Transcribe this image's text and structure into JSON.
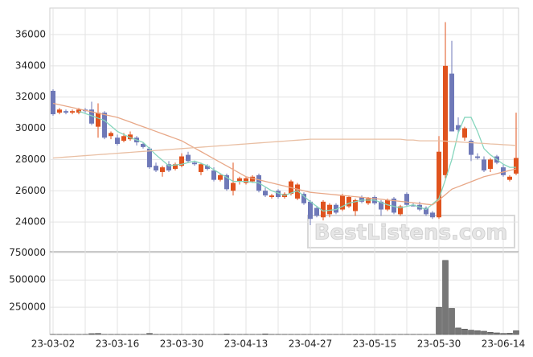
{
  "chart_data": [
    {
      "type": "candlestick",
      "watermark": "BestListens.com",
      "ylim": [
        22100,
        37700
      ],
      "yticks": [
        24000,
        26000,
        28000,
        30000,
        32000,
        34000,
        36000
      ],
      "up_color": "#e0531e",
      "down_color": "#6f79b8",
      "open": [
        32400,
        31000,
        31100,
        31000,
        31000,
        31200,
        31200,
        30100,
        31000,
        29500,
        29400,
        29200,
        29300,
        29400,
        29000,
        28700,
        27600,
        27200,
        27700,
        27400,
        27600,
        28300,
        27800,
        27200,
        27600,
        27300,
        26700,
        27000,
        26000,
        26600,
        26500,
        26600,
        27000,
        26000,
        25600,
        26000,
        25600,
        25800,
        25500,
        25800,
        25300,
        24900,
        24300,
        24500,
        25100,
        24800,
        25000,
        24700,
        25600,
        25200,
        25600,
        25300,
        24800,
        25500,
        24500,
        25800,
        25100,
        25100,
        24900,
        24600,
        24300,
        27000,
        33500,
        30200,
        29400,
        29200,
        28200,
        28000,
        27400,
        28200,
        27500,
        26700,
        27100
      ],
      "high": [
        32500,
        31300,
        31200,
        31200,
        31300,
        31300,
        31700,
        31600,
        31100,
        29800,
        29600,
        29700,
        29800,
        29500,
        29100,
        28800,
        27800,
        27600,
        27900,
        27800,
        28400,
        28500,
        27900,
        27800,
        27700,
        27500,
        27100,
        27100,
        27800,
        26900,
        26900,
        27000,
        27100,
        26200,
        25800,
        26100,
        25900,
        26700,
        26500,
        25900,
        25400,
        25000,
        25400,
        25200,
        25200,
        25800,
        25700,
        25500,
        25700,
        25600,
        25700,
        25400,
        25500,
        25600,
        25100,
        25900,
        25200,
        25300,
        25000,
        24700,
        29500,
        36800,
        35600,
        30700,
        30100,
        29300,
        28400,
        28200,
        28100,
        28300,
        27700,
        27000,
        31000
      ],
      "low": [
        30800,
        30900,
        30900,
        30900,
        30900,
        31000,
        30200,
        29400,
        29300,
        29300,
        28900,
        29100,
        29200,
        28900,
        28700,
        27400,
        27200,
        26900,
        27200,
        27300,
        27500,
        27800,
        27600,
        27000,
        27300,
        26600,
        26600,
        26000,
        25700,
        26400,
        26400,
        26500,
        25900,
        25600,
        25500,
        25500,
        25500,
        25700,
        25400,
        25100,
        23800,
        24300,
        24100,
        24300,
        24500,
        24700,
        24900,
        24400,
        25200,
        25100,
        25100,
        24400,
        24700,
        24500,
        24400,
        25000,
        25000,
        24700,
        24400,
        24200,
        24200,
        26800,
        29800,
        29700,
        29200,
        27900,
        28000,
        27200,
        27200,
        27700,
        26900,
        26600,
        27000
      ],
      "close": [
        30900,
        31200,
        31000,
        31100,
        31200,
        31100,
        30300,
        31000,
        29400,
        29700,
        29000,
        29500,
        29600,
        29100,
        28800,
        27500,
        27300,
        27500,
        27300,
        27700,
        28200,
        27900,
        27700,
        27700,
        27400,
        26700,
        27000,
        26100,
        26500,
        26800,
        26800,
        26900,
        26000,
        25700,
        25700,
        25600,
        25800,
        26600,
        26400,
        25200,
        24200,
        24400,
        25300,
        25100,
        24600,
        25700,
        25600,
        25400,
        25300,
        25500,
        25200,
        24800,
        25400,
        24600,
        25000,
        25100,
        25000,
        24800,
        24500,
        24300,
        28500,
        34000,
        29800,
        29900,
        30000,
        28300,
        28100,
        27300,
        28000,
        27800,
        27000,
        26900,
        28100
      ],
      "lines": [
        {
          "color": "#86d6bd",
          "values": [
            null,
            null,
            null,
            null,
            31100,
            30950,
            30800,
            30650,
            30500,
            30150,
            29800,
            29600,
            29400,
            29250,
            29100,
            28700,
            28300,
            27950,
            27600,
            27650,
            27700,
            27800,
            27900,
            27750,
            27600,
            27350,
            27100,
            26850,
            26600,
            26600,
            26600,
            26550,
            26500,
            26250,
            26000,
            25850,
            25700,
            25850,
            26000,
            25650,
            25300,
            25000,
            24700,
            24750,
            24800,
            25000,
            25200,
            25300,
            25400,
            25400,
            25400,
            25250,
            25100,
            25000,
            24900,
            25000,
            25100,
            24950,
            24800,
            25150,
            25500,
            26700,
            28000,
            29700,
            30700,
            30700,
            29800,
            28700,
            28300,
            28000,
            27700,
            27500,
            27500
          ]
        },
        {
          "color": "#e8a888",
          "values": [
            31600,
            31510,
            31420,
            31330,
            31240,
            31150,
            31060,
            30970,
            30880,
            30790,
            30700,
            30550,
            30400,
            30250,
            30100,
            29950,
            29800,
            29650,
            29500,
            29350,
            29200,
            28970,
            28740,
            28510,
            28280,
            28050,
            27820,
            27590,
            27360,
            27130,
            26900,
            26800,
            26700,
            26600,
            26500,
            26400,
            26300,
            26200,
            26100,
            26000,
            25900,
            25860,
            25820,
            25780,
            25740,
            25700,
            25660,
            25620,
            25580,
            25540,
            25500,
            25460,
            25410,
            25370,
            25320,
            25280,
            25230,
            25190,
            25140,
            25100,
            25400,
            25750,
            26100,
            26260,
            26420,
            26580,
            26740,
            26900,
            27000,
            27100,
            27200,
            27300,
            27400
          ]
        },
        {
          "color": "#e9bfa3",
          "values": [
            28100,
            28130,
            28160,
            28190,
            28220,
            28250,
            28280,
            28310,
            28340,
            28370,
            28400,
            28430,
            28460,
            28490,
            28520,
            28550,
            28580,
            28610,
            28640,
            28670,
            28700,
            28730,
            28760,
            28790,
            28820,
            28850,
            28880,
            28910,
            28940,
            28970,
            29000,
            29030,
            29060,
            29090,
            29120,
            29150,
            29180,
            29210,
            29240,
            29270,
            29300,
            29300,
            29300,
            29300,
            29300,
            29300,
            29300,
            29300,
            29300,
            29300,
            29300,
            29300,
            29300,
            29300,
            29300,
            29250,
            29250,
            29200,
            29200,
            29200,
            29200,
            29180,
            29150,
            29130,
            29100,
            29080,
            29050,
            29030,
            29000,
            28980,
            28950,
            28930,
            28900
          ]
        }
      ]
    },
    {
      "type": "bar",
      "color": "#777777",
      "ylim": [
        0,
        760000
      ],
      "yticks": [
        250000,
        500000,
        750000
      ],
      "categories": [
        "23-03-02",
        null,
        null,
        null,
        null,
        null,
        null,
        null,
        null,
        null,
        "23-03-16",
        null,
        null,
        null,
        null,
        null,
        null,
        null,
        null,
        null,
        "23-03-30",
        null,
        null,
        null,
        null,
        null,
        null,
        null,
        null,
        null,
        "23-04-13",
        null,
        null,
        null,
        null,
        null,
        null,
        null,
        null,
        null,
        "23-04-27",
        null,
        null,
        null,
        null,
        null,
        null,
        null,
        null,
        null,
        "23-05-15",
        null,
        null,
        null,
        null,
        null,
        null,
        null,
        null,
        null,
        "23-05-30",
        null,
        null,
        null,
        null,
        null,
        null,
        null,
        null,
        null,
        "23-06-14",
        null,
        null
      ],
      "values": [
        2000,
        2000,
        2000,
        2000,
        2000,
        2000,
        8000,
        10000,
        2000,
        2000,
        2000,
        2000,
        2000,
        2000,
        2000,
        10000,
        2000,
        2000,
        2000,
        2000,
        2000,
        2000,
        2000,
        2000,
        2000,
        2000,
        2000,
        5000,
        2000,
        2000,
        2000,
        2000,
        2000,
        6000,
        2000,
        2000,
        2000,
        2000,
        2000,
        2000,
        2000,
        2000,
        2000,
        2000,
        2000,
        2000,
        2000,
        2000,
        2000,
        2000,
        2000,
        2000,
        2000,
        2000,
        2000,
        2000,
        2000,
        2000,
        2000,
        2000,
        250000,
        680000,
        240000,
        60000,
        50000,
        40000,
        35000,
        30000,
        20000,
        15000,
        10000,
        12000,
        35000
      ]
    }
  ]
}
